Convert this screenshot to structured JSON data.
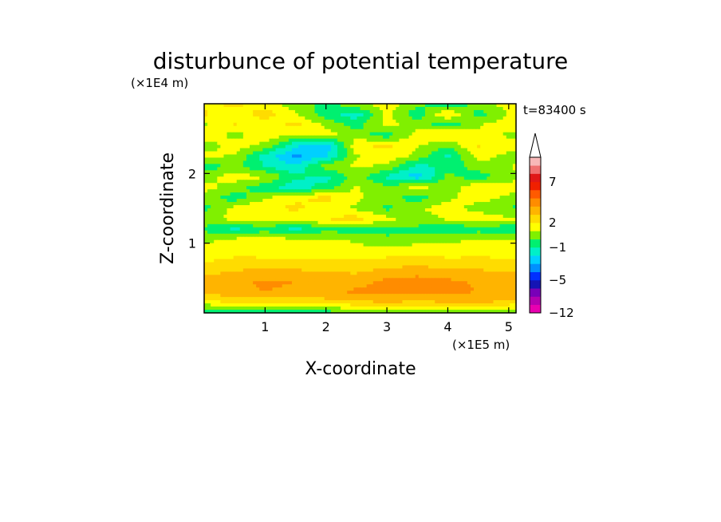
{
  "chart_data": {
    "type": "heatmap",
    "title": "disturbunce of potential temperature",
    "time_label": "t=83400 s",
    "xlabel": "X-coordinate",
    "ylabel": "Z-coordinate",
    "x_unit": "(×1E5 m)",
    "y_unit": "(×1E4 m)",
    "xlim": [
      0.0,
      5.12
    ],
    "ylim": [
      0.0,
      3.0
    ],
    "x_ticks": [
      1,
      2,
      3,
      4,
      5
    ],
    "y_ticks": [
      1,
      2
    ],
    "colorbar": {
      "levels": [
        -12,
        -10,
        -8,
        -6,
        -5,
        -4,
        -3,
        -2,
        -1,
        0,
        1,
        2,
        3,
        4,
        5,
        6,
        7,
        8,
        9,
        10
      ],
      "colors": [
        "#e800b0",
        "#b400b0",
        "#7800b8",
        "#1414b4",
        "#0030ff",
        "#0090ff",
        "#00d0ff",
        "#00f0c8",
        "#00f070",
        "#80f000",
        "#ffff00",
        "#ffdc00",
        "#ffb400",
        "#ff8c00",
        "#ff5a00",
        "#f02000",
        "#e01818",
        "#f07070",
        "#f8b8b8"
      ],
      "tick_labels": [
        "-12",
        "-5",
        "-1",
        "2",
        "7"
      ],
      "tick_values": [
        -12,
        -5,
        -1,
        2,
        7
      ],
      "extend": "max"
    },
    "field_rows": [
      {
        "z": 0.0,
        "x": [
          0.0,
          0.5,
          1.0,
          1.5,
          2.0,
          2.5,
          3.0,
          3.5,
          4.0,
          4.5,
          5.12
        ],
        "v": [
          -1.2,
          -0.5,
          -0.4,
          -0.6,
          -0.5,
          -0.3,
          -0.2,
          -0.3,
          0.2,
          0.1,
          -0.2
        ]
      },
      {
        "z": 0.15,
        "x": [
          0.0,
          0.5,
          1.0,
          1.5,
          2.0,
          2.5,
          3.0,
          3.5,
          4.0,
          4.5,
          5.12
        ],
        "v": [
          1.5,
          2.2,
          2.0,
          2.3,
          2.6,
          2.8,
          3.0,
          2.8,
          3.0,
          3.2,
          2.6
        ]
      },
      {
        "z": 0.3,
        "x": [
          0.0,
          0.5,
          1.0,
          1.5,
          2.0,
          2.5,
          3.0,
          3.5,
          4.0,
          4.5,
          5.12
        ],
        "v": [
          3.2,
          3.8,
          4.0,
          3.9,
          3.7,
          4.2,
          4.4,
          4.6,
          4.1,
          4.0,
          3.8
        ]
      },
      {
        "z": 0.45,
        "x": [
          0.0,
          0.5,
          1.0,
          1.5,
          2.0,
          2.5,
          3.0,
          3.5,
          4.0,
          4.5,
          5.12
        ],
        "v": [
          3.4,
          3.9,
          4.1,
          4.0,
          3.8,
          3.6,
          4.3,
          4.5,
          4.2,
          3.9,
          3.6
        ]
      },
      {
        "z": 0.6,
        "x": [
          0.0,
          0.5,
          1.0,
          1.5,
          2.0,
          2.5,
          3.0,
          3.5,
          4.0,
          4.5,
          5.12
        ],
        "v": [
          2.6,
          3.0,
          3.2,
          3.1,
          3.0,
          2.8,
          3.3,
          3.5,
          3.2,
          3.1,
          2.9
        ]
      },
      {
        "z": 0.75,
        "x": [
          0.0,
          0.5,
          1.0,
          1.5,
          2.0,
          2.5,
          3.0,
          3.5,
          4.0,
          4.5,
          5.12
        ],
        "v": [
          1.8,
          2.4,
          2.3,
          2.2,
          2.1,
          2.0,
          2.3,
          2.5,
          2.2,
          2.4,
          2.1
        ]
      },
      {
        "z": 0.9,
        "x": [
          0.0,
          0.5,
          1.0,
          1.5,
          2.0,
          2.5,
          3.0,
          3.5,
          4.0,
          4.5,
          5.12
        ],
        "v": [
          1.2,
          1.1,
          1.3,
          1.5,
          1.4,
          1.2,
          1.3,
          1.6,
          1.4,
          1.3,
          1.2
        ]
      },
      {
        "z": 1.05,
        "x": [
          0.0,
          0.5,
          1.0,
          1.5,
          2.0,
          2.5,
          3.0,
          3.5,
          4.0,
          4.5,
          5.12
        ],
        "v": [
          0.8,
          1.3,
          1.4,
          1.2,
          1.1,
          0.9,
          0.4,
          0.5,
          0.8,
          1.1,
          1.0
        ]
      },
      {
        "z": 1.2,
        "x": [
          0.0,
          0.5,
          1.0,
          1.5,
          2.0,
          2.5,
          3.0,
          3.5,
          4.0,
          4.5,
          5.12
        ],
        "v": [
          -0.2,
          -1.2,
          -0.4,
          -1.3,
          -0.3,
          -0.5,
          -0.6,
          -0.2,
          -1.1,
          -0.4,
          -0.9
        ]
      },
      {
        "z": 1.35,
        "x": [
          0.0,
          0.5,
          1.0,
          1.5,
          2.0,
          2.5,
          3.0,
          3.5,
          4.0,
          4.5,
          5.12
        ],
        "v": [
          0.6,
          1.3,
          1.6,
          1.2,
          2.1,
          2.4,
          1.4,
          0.4,
          1.2,
          1.7,
          1.1
        ]
      },
      {
        "z": 1.5,
        "x": [
          0.0,
          0.5,
          1.0,
          1.5,
          2.0,
          2.5,
          3.0,
          3.5,
          4.0,
          4.5,
          5.12
        ],
        "v": [
          -0.4,
          1.4,
          1.9,
          2.2,
          1.6,
          0.8,
          -0.3,
          0.9,
          1.5,
          0.6,
          -0.2
        ]
      },
      {
        "z": 1.65,
        "x": [
          0.0,
          0.5,
          1.0,
          1.5,
          2.0,
          2.5,
          3.0,
          3.5,
          4.0,
          4.5,
          5.12
        ],
        "v": [
          0.5,
          -0.6,
          0.9,
          1.8,
          2.3,
          1.2,
          0.4,
          -0.5,
          0.8,
          1.4,
          0.7
        ]
      },
      {
        "z": 1.8,
        "x": [
          0.0,
          0.5,
          1.0,
          1.5,
          2.0,
          2.5,
          3.0,
          3.5,
          4.0,
          4.5,
          5.12
        ],
        "v": [
          1.4,
          0.5,
          -0.7,
          -1.6,
          -0.6,
          1.1,
          0.2,
          1.3,
          0.5,
          1.8,
          1.2
        ]
      },
      {
        "z": 1.95,
        "x": [
          0.0,
          0.5,
          1.0,
          1.5,
          2.0,
          2.5,
          3.0,
          3.5,
          4.0,
          4.5,
          5.12
        ],
        "v": [
          0.6,
          1.5,
          1.1,
          -0.8,
          -1.3,
          0.4,
          -1.2,
          -2.6,
          0.3,
          -0.6,
          0.9
        ]
      },
      {
        "z": 2.1,
        "x": [
          0.0,
          0.5,
          1.0,
          1.5,
          2.0,
          2.5,
          3.0,
          3.5,
          4.0,
          4.5,
          5.12
        ],
        "v": [
          -0.7,
          0.4,
          -1.1,
          -1.9,
          0.6,
          1.2,
          0.8,
          -1.4,
          -0.6,
          0.5,
          1.1
        ]
      },
      {
        "z": 2.25,
        "x": [
          0.0,
          0.5,
          1.0,
          1.5,
          2.0,
          2.5,
          3.0,
          3.5,
          4.0,
          4.5,
          5.12
        ],
        "v": [
          1.3,
          0.8,
          -1.4,
          -3.2,
          -2.1,
          0.9,
          1.6,
          0.7,
          -1.2,
          1.4,
          0.6
        ]
      },
      {
        "z": 2.4,
        "x": [
          0.0,
          0.5,
          1.0,
          1.5,
          2.0,
          2.5,
          3.0,
          3.5,
          4.0,
          4.5,
          5.12
        ],
        "v": [
          0.4,
          1.6,
          0.7,
          -1.8,
          -2.9,
          1.8,
          2.3,
          1.1,
          0.2,
          2.1,
          1.3
        ]
      },
      {
        "z": 2.55,
        "x": [
          0.0,
          0.5,
          1.0,
          1.5,
          2.0,
          2.5,
          3.0,
          3.5,
          4.0,
          4.5,
          5.12
        ],
        "v": [
          1.9,
          0.6,
          1.8,
          0.9,
          1.5,
          0.4,
          -0.6,
          1.4,
          2.4,
          1.2,
          0.8
        ]
      },
      {
        "z": 2.7,
        "x": [
          0.0,
          0.5,
          1.0,
          1.5,
          2.0,
          2.5,
          3.0,
          3.5,
          4.0,
          4.5,
          5.12
        ],
        "v": [
          0.8,
          2.1,
          1.2,
          2.4,
          0.7,
          -0.4,
          1.3,
          0.6,
          -0.8,
          0.9,
          1.8
        ]
      },
      {
        "z": 2.85,
        "x": [
          0.0,
          0.5,
          1.0,
          1.5,
          2.0,
          2.5,
          3.0,
          3.5,
          4.0,
          4.5,
          5.12
        ],
        "v": [
          2.2,
          1.2,
          2.6,
          1.1,
          -0.6,
          -1.6,
          1.4,
          -0.7,
          2.3,
          -0.5,
          1.4
        ]
      },
      {
        "z": 3.0,
        "x": [
          0.0,
          0.5,
          1.0,
          1.5,
          2.0,
          2.5,
          3.0,
          3.5,
          4.0,
          4.5,
          5.12
        ],
        "v": [
          1.5,
          2.4,
          1.3,
          0.5,
          -0.4,
          0.8,
          1.6,
          0.4,
          -1.3,
          0.7,
          1.6
        ]
      }
    ]
  }
}
